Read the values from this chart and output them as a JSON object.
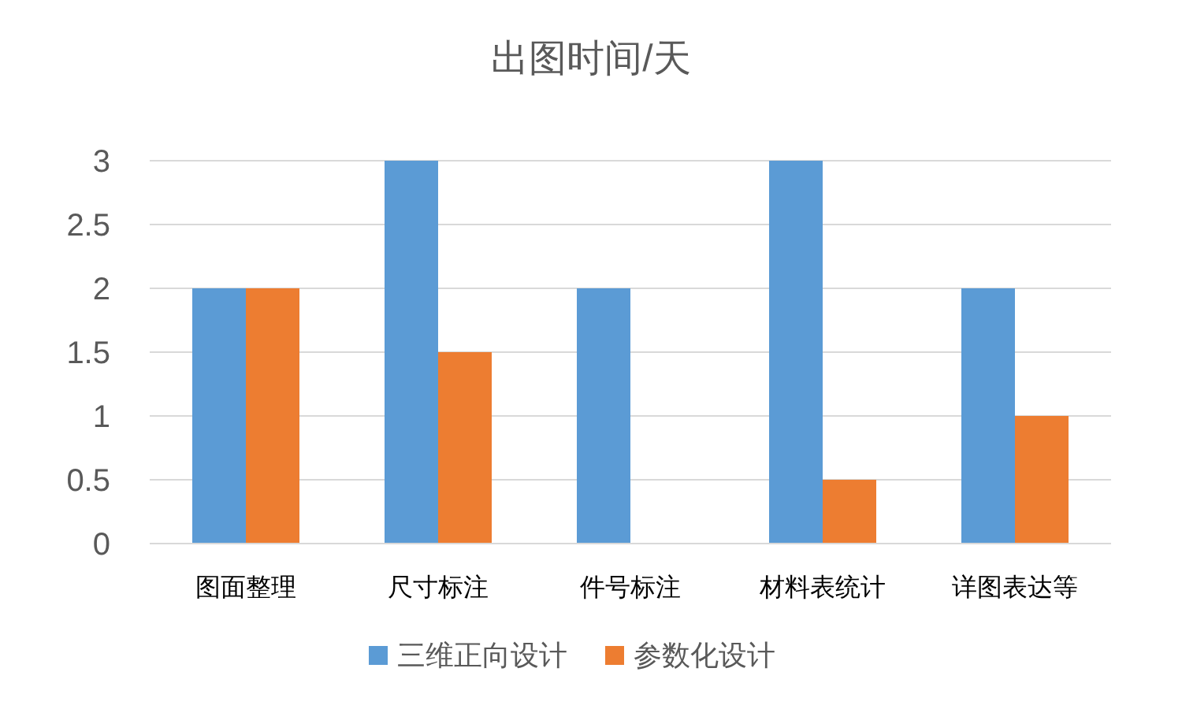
{
  "chart_data": {
    "type": "bar",
    "title": "出图时间/天",
    "categories": [
      "图面整理",
      "尺寸标注",
      "件号标注",
      "材料表统计",
      "详图表达等"
    ],
    "series": [
      {
        "name": "三维正向设计",
        "color": "#5b9bd5",
        "values": [
          2,
          3,
          2,
          3,
          2
        ]
      },
      {
        "name": "参数化设计",
        "color": "#ed7d31",
        "values": [
          2,
          1.5,
          0,
          0.5,
          1
        ]
      }
    ],
    "ylim": [
      0,
      3
    ],
    "yticks": [
      0,
      0.5,
      1,
      1.5,
      2,
      2.5,
      3
    ],
    "grid": "y",
    "legend": "bottom"
  }
}
